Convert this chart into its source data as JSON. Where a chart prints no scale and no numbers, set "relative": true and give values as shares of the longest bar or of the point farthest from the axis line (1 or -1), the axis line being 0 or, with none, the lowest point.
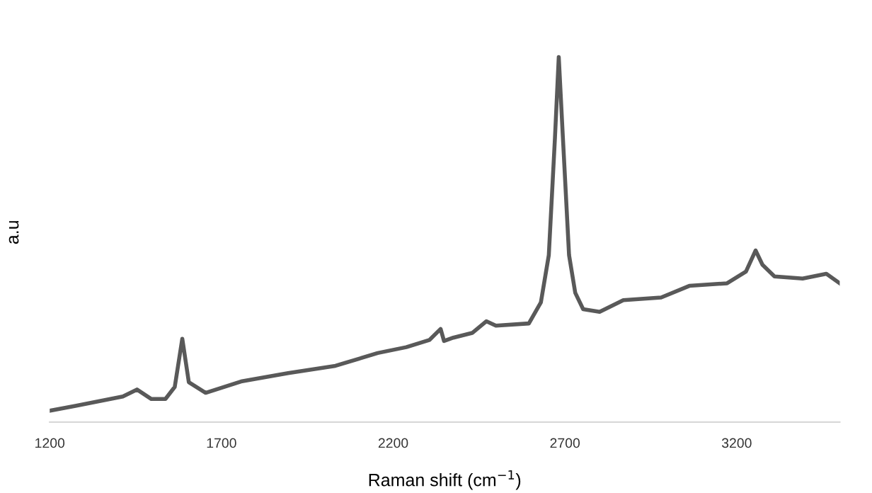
{
  "chart_data": {
    "type": "line",
    "relative": true,
    "xlabel": "Raman shift (cm$^{−1}$)",
    "ylabel": "a.u",
    "xlim": [
      1200,
      3500
    ],
    "xticks": [
      1200,
      1700,
      2200,
      2700,
      3200
    ],
    "grid": false,
    "legend": false,
    "marker": "none",
    "line_style": "solid",
    "series": [
      {
        "color": "#595959",
        "x": [
          1200,
          1275,
          1413,
          1454,
          1496,
          1537,
          1564,
          1586,
          1605,
          1654,
          1757,
          1894,
          2032,
          2155,
          2238,
          2306,
          2338,
          2348,
          2375,
          2430,
          2471,
          2499,
          2595,
          2630,
          2653,
          2671,
          2682,
          2694,
          2712,
          2730,
          2753,
          2801,
          2870,
          2980,
          3062,
          3172,
          3227,
          3255,
          3275,
          3310,
          3392,
          3461,
          3500
        ],
        "values": [
          0.031,
          0.044,
          0.07,
          0.089,
          0.063,
          0.063,
          0.096,
          0.228,
          0.109,
          0.08,
          0.111,
          0.134,
          0.154,
          0.189,
          0.205,
          0.225,
          0.255,
          0.222,
          0.231,
          0.244,
          0.276,
          0.264,
          0.27,
          0.328,
          0.457,
          0.78,
          1,
          0.78,
          0.457,
          0.354,
          0.309,
          0.302,
          0.334,
          0.341,
          0.373,
          0.38,
          0.412,
          0.47,
          0.431,
          0.399,
          0.393,
          0.406,
          0.38
        ]
      }
    ]
  }
}
